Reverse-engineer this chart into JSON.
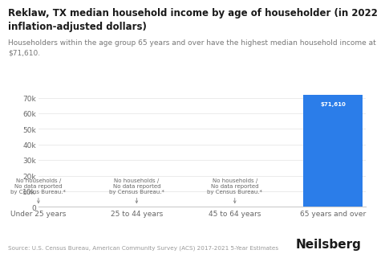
{
  "title_line1": "Reklaw, TX median household income by age of householder (in 2022",
  "title_line2": "inflation-adjusted dollars)",
  "subtitle": "Householders within the age group 65 years and over have the highest median household income at\n$71,610.",
  "categories": [
    "Under 25 years",
    "25 to 44 years",
    "45 to 64 years",
    "65 years and over"
  ],
  "values": [
    0,
    0,
    0,
    71610
  ],
  "bar_color_active": "#2b7de9",
  "no_data_text": "No households /\nNo data reported\nby Census Bureau.*",
  "bar_label": "$71,610",
  "ylim": [
    0,
    75000
  ],
  "yticks": [
    0,
    10000,
    20000,
    30000,
    40000,
    50000,
    60000,
    70000
  ],
  "ytick_labels": [
    "0",
    "10k",
    "20k",
    "30k",
    "40k",
    "50k",
    "60k",
    "70k"
  ],
  "source_text": "Source: U.S. Census Bureau, American Community Survey (ACS) 2017-2021 5-Year Estimates",
  "brand_text": "Neilsberg",
  "background_color": "#ffffff",
  "title_fontsize": 8.5,
  "subtitle_fontsize": 6.5,
  "tick_fontsize": 6.5,
  "source_fontsize": 5.2,
  "brand_fontsize": 11,
  "annotation_fontsize": 5.0,
  "no_data_fontsize": 5.0
}
